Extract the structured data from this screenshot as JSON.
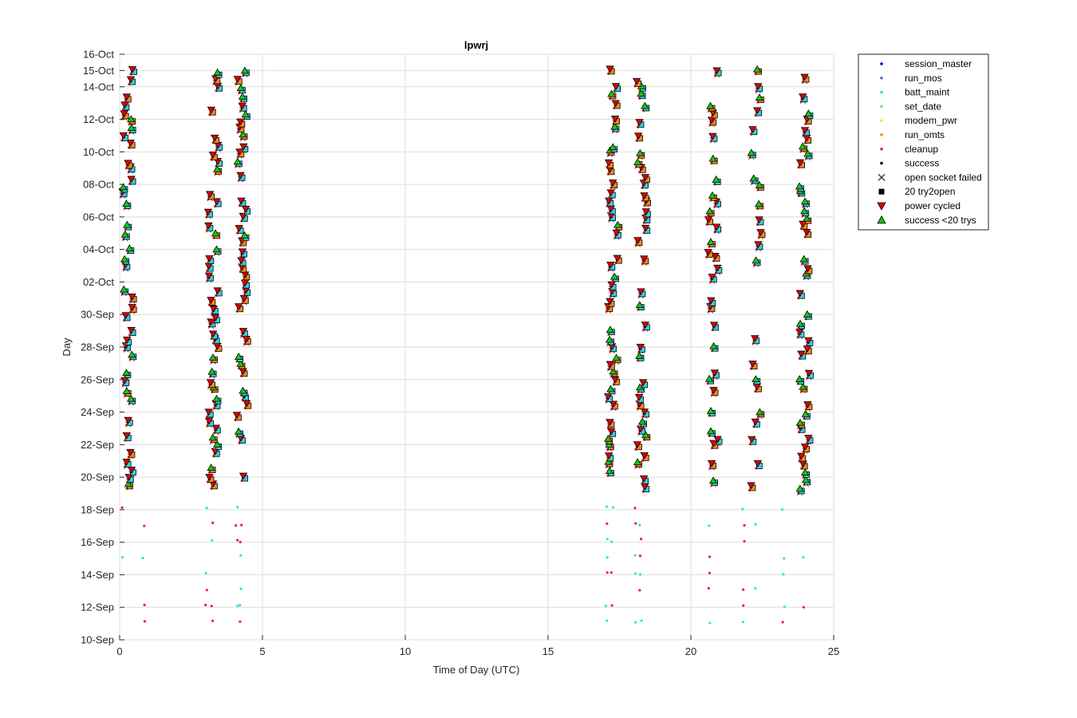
{
  "chart_data": {
    "type": "scatter",
    "title": "lpwrj",
    "xlabel": "Time of Day (UTC)",
    "ylabel": "Day",
    "xlim": [
      0,
      25
    ],
    "xticks": [
      0,
      5,
      10,
      15,
      20,
      25
    ],
    "ylim_days": [
      0,
      36
    ],
    "ytick_labels": [
      "10-Sep",
      "12-Sep",
      "14-Sep",
      "16-Sep",
      "18-Sep",
      "20-Sep",
      "22-Sep",
      "24-Sep",
      "26-Sep",
      "28-Sep",
      "30-Sep",
      "02-Oct",
      "04-Oct",
      "06-Oct",
      "08-Oct",
      "10-Oct",
      "12-Oct",
      "14-Oct",
      "15-Oct",
      "16-Oct"
    ],
    "ytick_days": [
      0,
      2,
      4,
      6,
      8,
      10,
      12,
      14,
      16,
      18,
      20,
      22,
      24,
      26,
      28,
      30,
      32,
      34,
      35,
      36
    ],
    "grid": true,
    "legend_position": "outside-top-right",
    "legend": [
      {
        "name": "session_master",
        "marker": "dot",
        "color": "#0000cc"
      },
      {
        "name": "run_mos",
        "marker": "dot",
        "color": "#3a7be0"
      },
      {
        "name": "batt_maint",
        "marker": "dot",
        "color": "#33e0e8"
      },
      {
        "name": "set_date",
        "marker": "dot",
        "color": "#66ee66"
      },
      {
        "name": "modem_pwr",
        "marker": "dot",
        "color": "#eeee22"
      },
      {
        "name": "run_omts",
        "marker": "dot",
        "color": "#ee8822"
      },
      {
        "name": "cleanup",
        "marker": "dot",
        "color": "#ee2222"
      },
      {
        "name": "success",
        "marker": "dot",
        "color": "#000000"
      },
      {
        "name": "open socket failed",
        "marker": "x",
        "color": "#000000"
      },
      {
        "name": "20 try2open",
        "marker": "square",
        "color": "#000000"
      },
      {
        "name": "power cycled",
        "marker": "triangle-down",
        "color": "#dd0000"
      },
      {
        "name": "success <20 trys",
        "marker": "triangle-up",
        "color": "#00cc00"
      }
    ],
    "session_clusters_hours": [
      0.1,
      3.1,
      4.1,
      17.1,
      18.1,
      20.6,
      22.1,
      23.8
    ],
    "session_start_hours": [
      0.05,
      3.0,
      4.0,
      17.0,
      18.0,
      20.6,
      22.1,
      23.8
    ]
  }
}
